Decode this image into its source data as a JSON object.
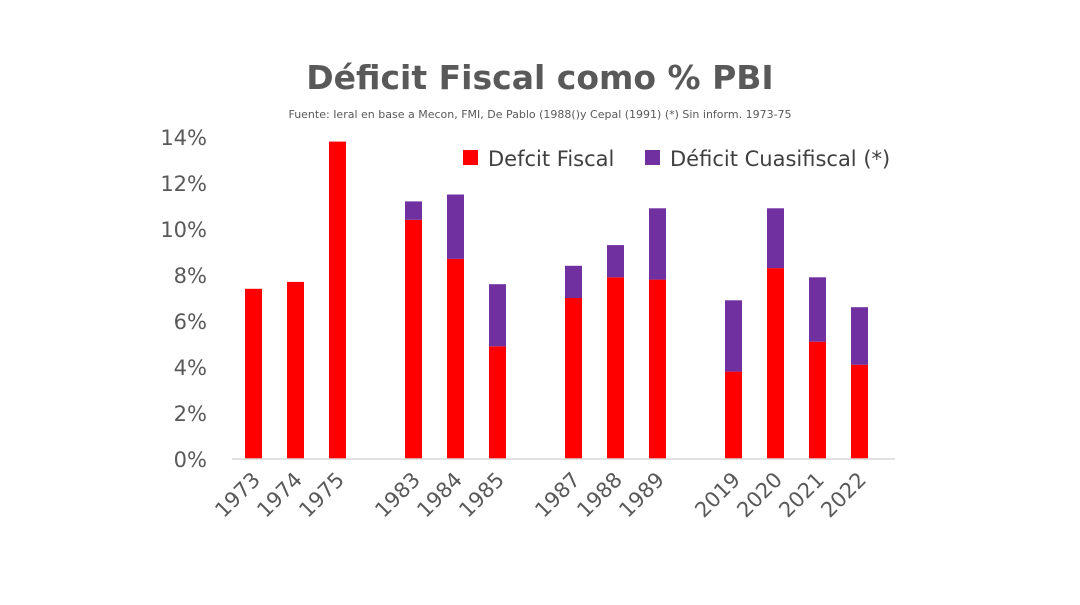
{
  "chart_data": {
    "type": "bar",
    "stacked": true,
    "title": "Déficit Fiscal como % PBI",
    "subtitle": "Fuente: Ieral en base  a Mecon, FMI,  De Pablo (1988()y Cepal (1991) (*) Sin inform. 1973-75",
    "xlabel": "",
    "ylabel": "",
    "ylim": [
      0,
      14
    ],
    "y_ticks": [
      "0%",
      "2%",
      "4%",
      "6%",
      "8%",
      "10%",
      "12%",
      "14%"
    ],
    "groups": [
      [
        "1973",
        "1974",
        "1975"
      ],
      [
        "1983",
        "1984",
        "1985"
      ],
      [
        "1987",
        "1988",
        "1989"
      ],
      [
        "2019",
        "2020",
        "2021",
        "2022"
      ]
    ],
    "categories": [
      "1973",
      "1974",
      "1975",
      "1983",
      "1984",
      "1985",
      "1987",
      "1988",
      "1989",
      "2019",
      "2020",
      "2021",
      "2022"
    ],
    "series": [
      {
        "name": "Defcit Fiscal",
        "color": "#ff0000",
        "values": [
          7.4,
          7.7,
          13.8,
          10.4,
          8.7,
          4.9,
          7.0,
          7.9,
          7.8,
          3.8,
          8.3,
          5.1,
          4.1
        ]
      },
      {
        "name": "Déficit Cuasifiscal (*)",
        "color": "#7030a0",
        "values": [
          0,
          0,
          0,
          0.8,
          2.8,
          2.7,
          1.4,
          1.4,
          3.1,
          3.1,
          2.6,
          2.8,
          2.5
        ]
      }
    ],
    "legend_position": "top-right",
    "grid": false
  }
}
